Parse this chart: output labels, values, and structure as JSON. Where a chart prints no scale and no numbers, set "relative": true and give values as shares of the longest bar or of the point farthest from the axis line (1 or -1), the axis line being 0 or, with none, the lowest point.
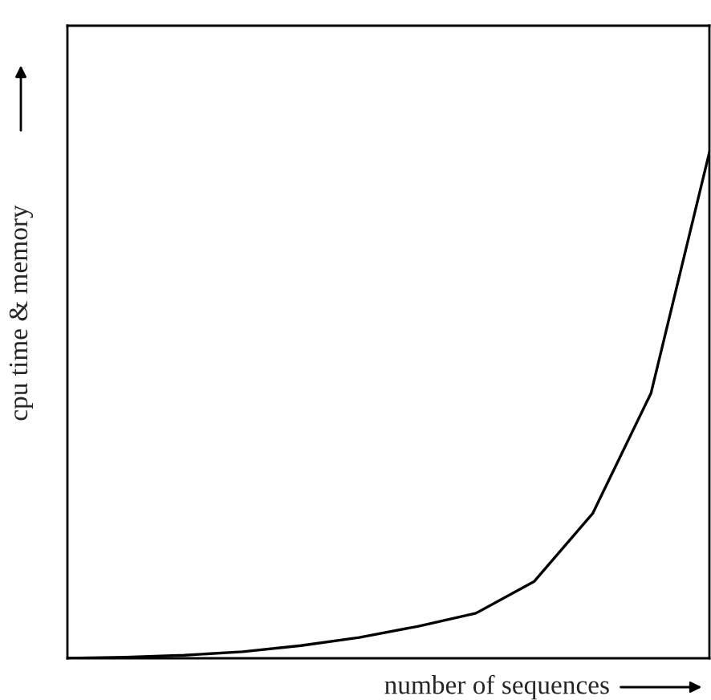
{
  "chart_data": {
    "type": "line",
    "relative": true,
    "xlabel": "number of sequences",
    "ylabel": "cpu time & memory",
    "categories": [
      null,
      null,
      null,
      null,
      null,
      null,
      null,
      null,
      null,
      null,
      null,
      null
    ],
    "series": [
      {
        "color": "#000000",
        "values": [
          0,
          0.002,
          0.006,
          0.013,
          0.025,
          0.041,
          0.063,
          0.089,
          0.152,
          0.286,
          0.524,
          1
        ]
      }
    ]
  }
}
